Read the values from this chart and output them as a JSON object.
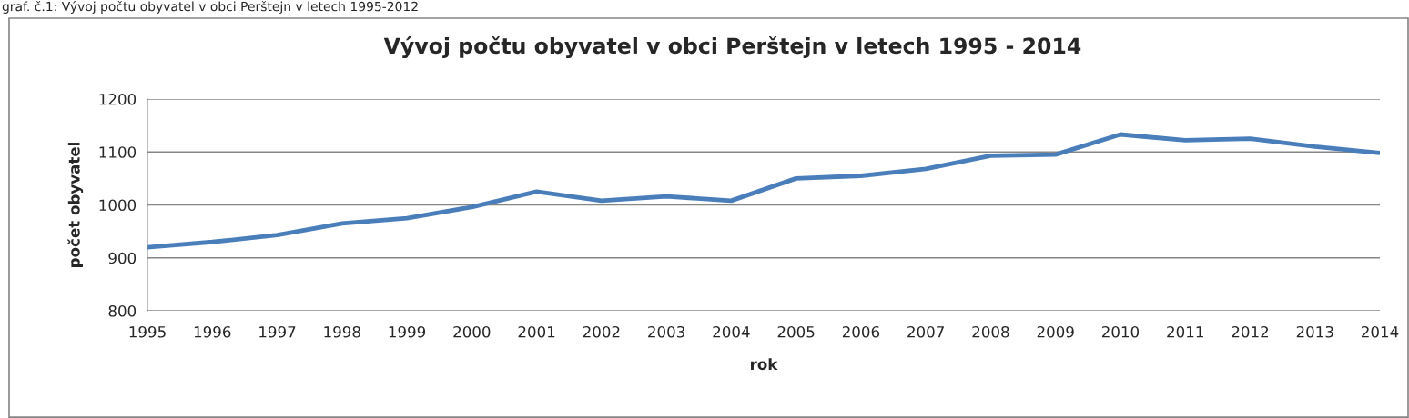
{
  "chart_data": {
    "type": "line",
    "title": "Vývoj počtu obyvatel v obci Perštejn v letech 1995 - 2014",
    "xlabel": "rok",
    "ylabel": "počet obyvatel",
    "annotations": [
      "graf. č.1: Vývoj počtu obyvatel v obci Perštejn v letech 1995-2012"
    ],
    "categories": [
      "1995",
      "1996",
      "1997",
      "1998",
      "1999",
      "2000",
      "2001",
      "2002",
      "2003",
      "2004",
      "2005",
      "2006",
      "2007",
      "2008",
      "2009",
      "2010",
      "2011",
      "2012",
      "2013",
      "2014"
    ],
    "series": [
      {
        "color": "#4a7ebb",
        "values": [
          920,
          930,
          943,
          965,
          975,
          996,
          1025,
          1008,
          1016,
          1008,
          1050,
          1055,
          1068,
          1093,
          1095,
          1133,
          1122,
          1125,
          1110,
          1098
        ]
      }
    ],
    "ylim": [
      800,
      1200
    ],
    "yticks": [
      800,
      900,
      1000,
      1100,
      1200
    ],
    "grid": "y",
    "legend": false,
    "marker": "none",
    "line_style": "solid"
  }
}
